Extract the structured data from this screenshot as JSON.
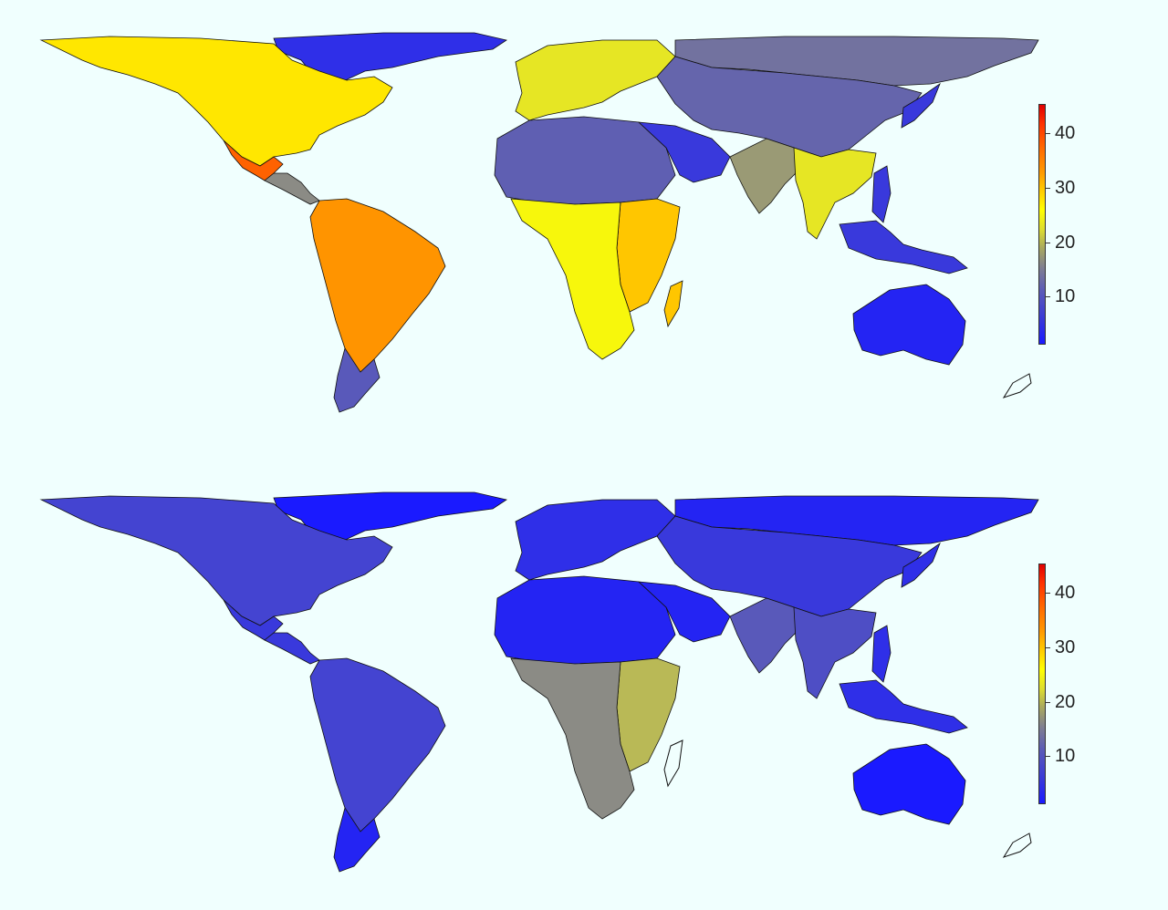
{
  "maps": [
    {
      "id": "top",
      "colorbar": {
        "ticks": [
          "40",
          "30",
          "20",
          "10"
        ],
        "range": [
          2,
          45
        ],
        "palette": [
          "#1a1aff",
          "#5a5ab8",
          "#808090",
          "#dede30",
          "#ffff00",
          "#ff9900",
          "#ff3300",
          "#e00000"
        ]
      },
      "region_levels": {
        "north_america": 28,
        "mexico": 36,
        "central_america": 15,
        "south_america": 33,
        "patagonia": 8,
        "europe": 22,
        "sahara": 9,
        "arabia": 5,
        "africa_south": 25,
        "east_africa": 30,
        "siberia": 12,
        "central_asia": 10,
        "india": 16,
        "southeast_asia": 22,
        "australia": 3,
        "greenland": 4,
        "indonesia": 5
      }
    },
    {
      "id": "bottom",
      "colorbar": {
        "ticks": [
          "40",
          "30",
          "20",
          "10"
        ],
        "range": [
          2,
          45
        ],
        "palette": [
          "#1a1aff",
          "#5a5ab8",
          "#808090",
          "#dede30",
          "#ffff00",
          "#ff9900",
          "#ff3300",
          "#e00000"
        ]
      },
      "region_levels": {
        "north_america": 6,
        "mexico": 5,
        "central_america": 5,
        "south_america": 6,
        "patagonia": 3,
        "europe": 4,
        "sahara": 3,
        "arabia": 3,
        "africa_south": 15,
        "east_africa": 18,
        "siberia": 3,
        "central_asia": 5,
        "india": 8,
        "southeast_asia": 7,
        "australia": 2,
        "greenland": 2,
        "indonesia": 4
      }
    }
  ]
}
